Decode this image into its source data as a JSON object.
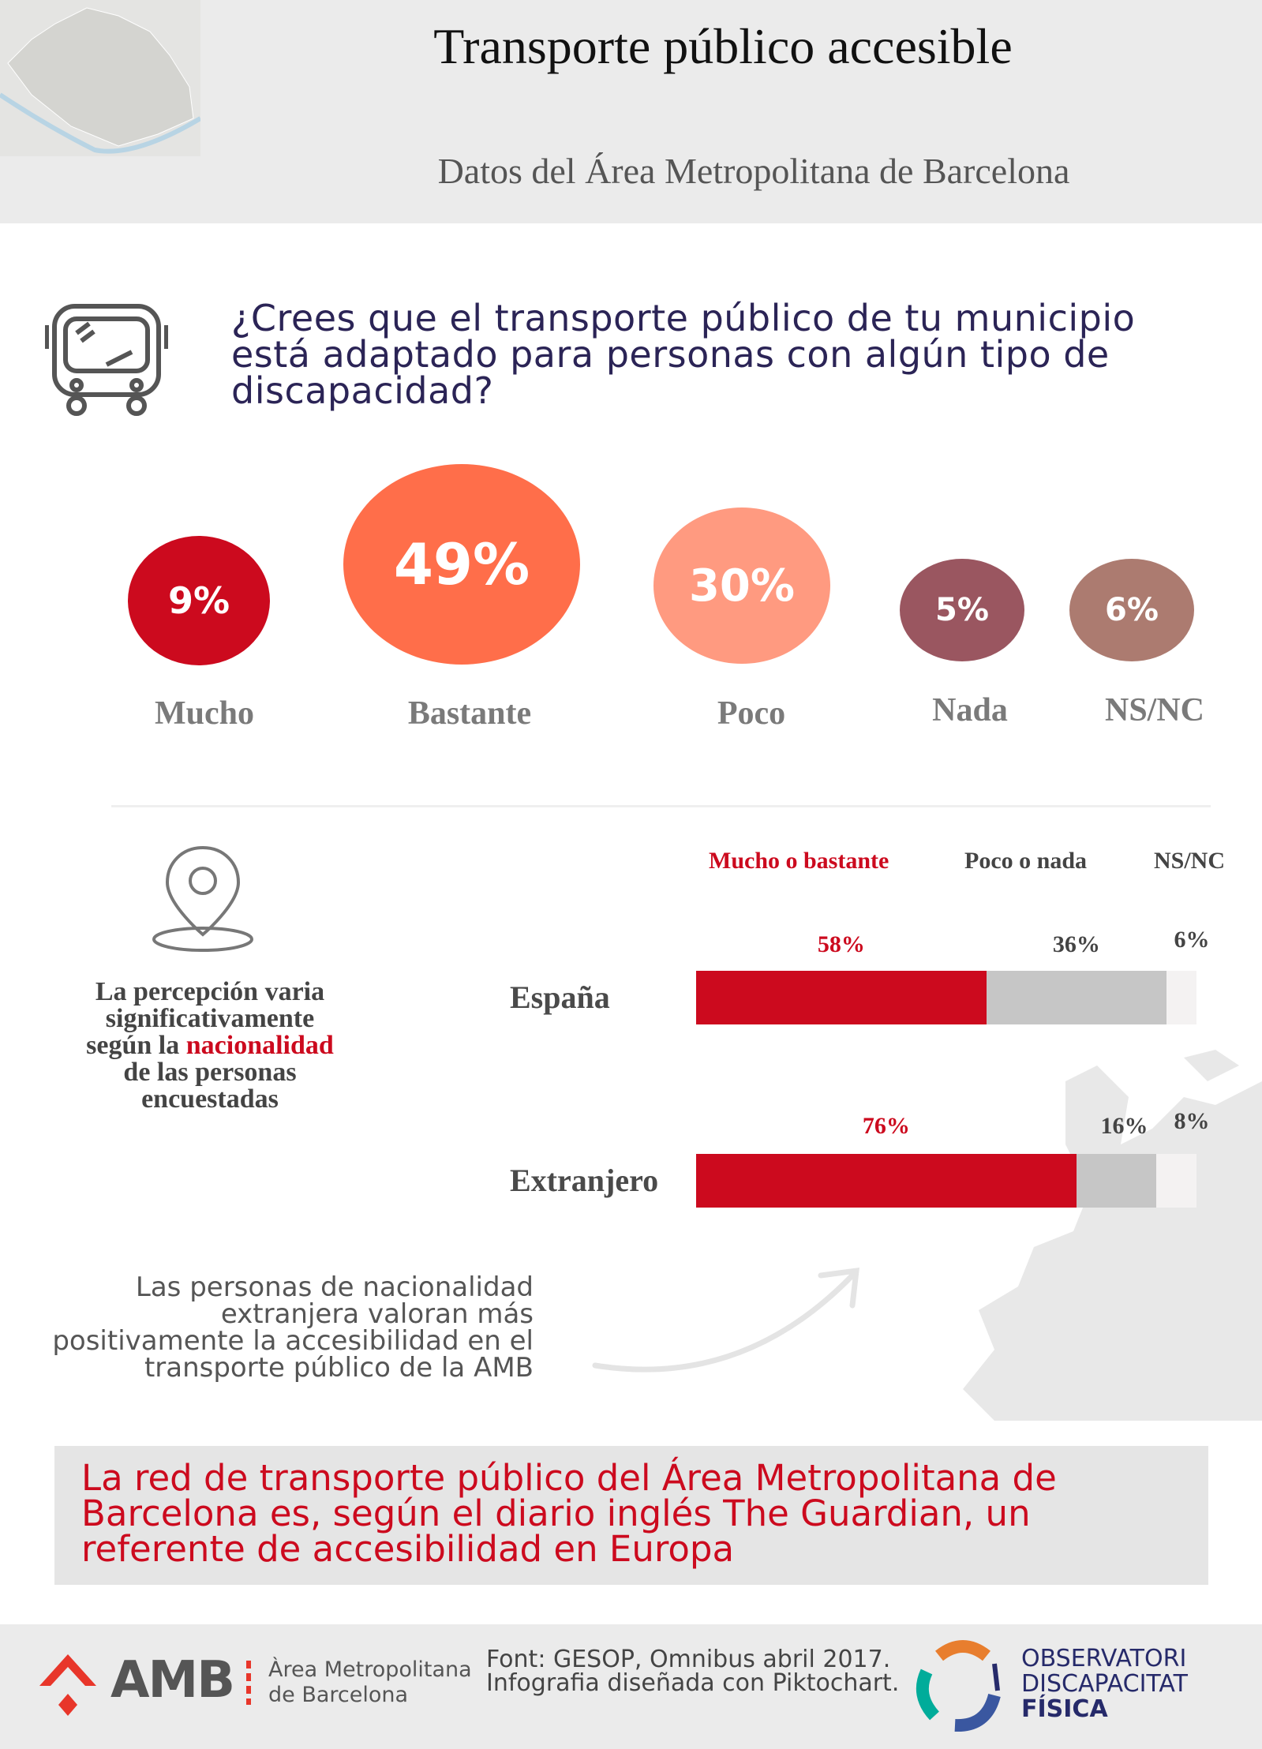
{
  "header": {
    "title": "Transporte público accesible",
    "subtitle": "Datos del Área Metropolitana de Barcelona"
  },
  "question": "¿Crees que el transporte público de tu municipio está adaptado para personas con algún tipo de discapacidad?",
  "responses": [
    {
      "label": "Mucho",
      "value": "9%",
      "color": "#cc0a1e"
    },
    {
      "label": "Bastante",
      "value": "49%",
      "color": "#ff6e4a"
    },
    {
      "label": "Poco",
      "value": "30%",
      "color": "#ff9a80"
    },
    {
      "label": "Nada",
      "value": "5%",
      "color": "#9a5660"
    },
    {
      "label": "NS/NC",
      "value": "6%",
      "color": "#ac7b70"
    }
  ],
  "nationality_note": {
    "before": "La percepción varia significativamente según la ",
    "highlight": "nacionalidad",
    "after": " de las personas encuestadas"
  },
  "legend": {
    "a": "Mucho o bastante",
    "b": "Poco o nada",
    "c": "NS/NC"
  },
  "chart_data": {
    "type": "bar",
    "stacked": true,
    "categories": [
      "España",
      "Extranjero"
    ],
    "series": [
      {
        "name": "Mucho o bastante",
        "values": [
          58,
          76
        ],
        "labels": [
          "58%",
          "76%"
        ],
        "color": "#cc0a1e"
      },
      {
        "name": "Poco o nada",
        "values": [
          36,
          16
        ],
        "labels": [
          "36%",
          "16%"
        ],
        "color": "#c6c6c6"
      },
      {
        "name": "NS/NC",
        "values": [
          6,
          8
        ],
        "labels": [
          "6%",
          "8%"
        ],
        "color": "#f4f2f2"
      }
    ]
  },
  "bottom_note": "Las personas de nacionalidad extranjera valoran más positivamente la accesibilidad en el transporte público de la AMB",
  "highlight_box": "La red de transporte público del Área  Metropolitana de Barcelona es, según el diario inglés The Guardian, un referente de accesibilidad en Europa",
  "footer": {
    "amb_logo": "AMB",
    "amb_name_1": "Àrea Metropolitana",
    "amb_name_2": "de Barcelona",
    "source": "Font: GESOP, Omnibus abril 2017. Infografia diseñada con Piktochart.",
    "obs_1": "OBSERVATORI",
    "obs_2": "DISCAPACITAT",
    "obs_3": "FÍSICA"
  }
}
